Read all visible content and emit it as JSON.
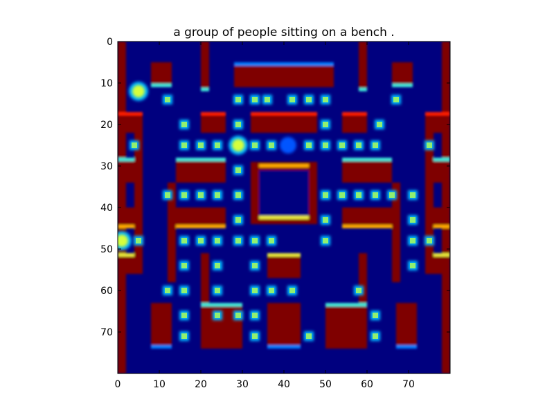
{
  "title": "a group of people sitting on a bench .",
  "plot": {
    "xlim": [
      0,
      80
    ],
    "ylim": [
      80,
      0
    ],
    "x_ticks": [
      "0",
      "10",
      "20",
      "30",
      "40",
      "50",
      "60",
      "70"
    ],
    "y_ticks": [
      "0",
      "10",
      "20",
      "30",
      "40",
      "50",
      "60",
      "70"
    ],
    "colormap": "jet"
  },
  "colors": {
    "background": "#00007f",
    "wall": "#7f0000",
    "wall_edge_red": "#ff1a00",
    "wall_edge_orange": "#ffaa00",
    "wall_edge_yellow": "#e8e83a",
    "wall_edge_cyan": "#40e8d8",
    "wall_edge_blue": "#0080ff",
    "pellet": "#90f070",
    "pellet_halo": "#00b4ff",
    "pacman": "#d6ff3a",
    "ghost": "#0055ff"
  },
  "maze": {
    "pellets": [
      [
        12,
        14
      ],
      [
        29,
        14
      ],
      [
        33,
        14
      ],
      [
        36,
        14
      ],
      [
        42,
        14
      ],
      [
        46,
        14
      ],
      [
        50,
        14
      ],
      [
        67,
        14
      ],
      [
        16,
        20
      ],
      [
        29,
        20
      ],
      [
        50,
        20
      ],
      [
        63,
        20
      ],
      [
        4,
        25
      ],
      [
        16,
        25
      ],
      [
        20,
        25
      ],
      [
        24,
        25
      ],
      [
        29,
        25
      ],
      [
        33,
        25
      ],
      [
        37,
        25
      ],
      [
        46,
        25
      ],
      [
        50,
        25
      ],
      [
        54,
        25
      ],
      [
        58,
        25
      ],
      [
        62,
        25
      ],
      [
        75,
        25
      ],
      [
        29,
        31
      ],
      [
        12,
        37
      ],
      [
        16,
        37
      ],
      [
        20,
        37
      ],
      [
        24,
        37
      ],
      [
        29,
        37
      ],
      [
        50,
        37
      ],
      [
        54,
        37
      ],
      [
        58,
        37
      ],
      [
        62,
        37
      ],
      [
        66,
        37
      ],
      [
        71,
        37
      ],
      [
        29,
        43
      ],
      [
        50,
        43
      ],
      [
        71,
        43
      ],
      [
        5,
        48
      ],
      [
        16,
        48
      ],
      [
        20,
        48
      ],
      [
        24,
        48
      ],
      [
        29,
        48
      ],
      [
        33,
        48
      ],
      [
        37,
        48
      ],
      [
        50,
        48
      ],
      [
        71,
        48
      ],
      [
        75,
        48
      ],
      [
        16,
        54
      ],
      [
        24,
        54
      ],
      [
        33,
        54
      ],
      [
        71,
        54
      ],
      [
        12,
        60
      ],
      [
        16,
        60
      ],
      [
        24,
        60
      ],
      [
        33,
        60
      ],
      [
        37,
        60
      ],
      [
        42,
        60
      ],
      [
        58,
        60
      ],
      [
        16,
        66
      ],
      [
        24,
        66
      ],
      [
        29,
        66
      ],
      [
        33,
        66
      ],
      [
        62,
        66
      ],
      [
        16,
        71
      ],
      [
        33,
        71
      ],
      [
        46,
        71
      ],
      [
        62,
        71
      ]
    ],
    "pacman_positions": [
      [
        5,
        12
      ],
      [
        29,
        25
      ],
      [
        1,
        48
      ]
    ],
    "ghost_positions": [
      [
        41,
        25
      ]
    ]
  }
}
